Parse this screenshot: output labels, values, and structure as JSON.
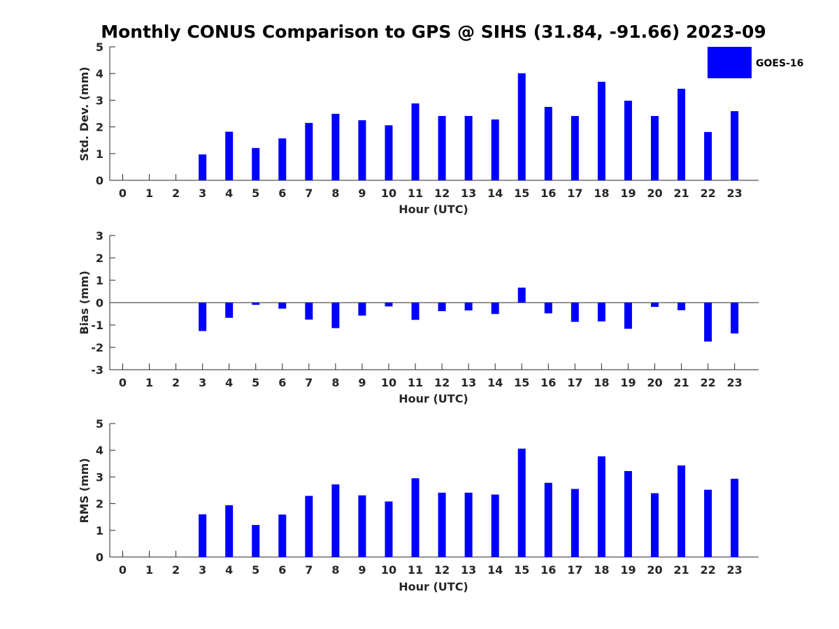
{
  "figure_title": "Monthly CONUS Comparison to GPS @ SIHS (31.84, -91.66) 2023-09",
  "legend": {
    "label": "GOES-16",
    "color": "#0000ff"
  },
  "chart_data": [
    {
      "type": "bar",
      "title": "Monthly CONUS Comparison to GPS @ SIHS (31.84, -91.66) 2023-09",
      "xlabel": "Hour (UTC)",
      "ylabel": "Std. Dev. (mm)",
      "categories": [
        "0",
        "1",
        "2",
        "3",
        "4",
        "5",
        "6",
        "7",
        "8",
        "9",
        "10",
        "11",
        "12",
        "13",
        "14",
        "15",
        "16",
        "17",
        "18",
        "19",
        "20",
        "21",
        "22",
        "23"
      ],
      "series": [
        {
          "name": "GOES-16",
          "color": "#0000ff",
          "values": [
            null,
            null,
            null,
            0.97,
            1.82,
            1.21,
            1.57,
            2.15,
            2.49,
            2.25,
            2.06,
            2.88,
            2.41,
            2.41,
            2.28,
            4.01,
            2.75,
            2.41,
            3.69,
            2.98,
            2.41,
            3.43,
            1.81,
            2.59
          ]
        }
      ],
      "ylim": [
        0,
        5
      ],
      "yticks": [
        0,
        1,
        2,
        3,
        4,
        5
      ],
      "legend_position": "top-right",
      "grid": false
    },
    {
      "type": "bar",
      "xlabel": "Hour (UTC)",
      "ylabel": "Bias (mm)",
      "categories": [
        "0",
        "1",
        "2",
        "3",
        "4",
        "5",
        "6",
        "7",
        "8",
        "9",
        "10",
        "11",
        "12",
        "13",
        "14",
        "15",
        "16",
        "17",
        "18",
        "19",
        "20",
        "21",
        "22",
        "23"
      ],
      "series": [
        {
          "name": "GOES-16",
          "color": "#0000ff",
          "values": [
            null,
            null,
            null,
            -1.27,
            -0.68,
            -0.1,
            -0.27,
            -0.76,
            -1.14,
            -0.58,
            -0.17,
            -0.77,
            -0.38,
            -0.35,
            -0.51,
            0.67,
            -0.48,
            -0.86,
            -0.84,
            -1.17,
            -0.19,
            -0.34,
            -1.74,
            -1.38
          ]
        }
      ],
      "ylim": [
        -3,
        3
      ],
      "yticks": [
        -3,
        -2,
        -1,
        0,
        1,
        2,
        3
      ],
      "grid": false
    },
    {
      "type": "bar",
      "xlabel": "Hour (UTC)",
      "ylabel": "RMS (mm)",
      "categories": [
        "0",
        "1",
        "2",
        "3",
        "4",
        "5",
        "6",
        "7",
        "8",
        "9",
        "10",
        "11",
        "12",
        "13",
        "14",
        "15",
        "16",
        "17",
        "18",
        "19",
        "20",
        "21",
        "22",
        "23"
      ],
      "series": [
        {
          "name": "GOES-16",
          "color": "#0000ff",
          "values": [
            null,
            null,
            null,
            1.6,
            1.94,
            1.2,
            1.59,
            2.29,
            2.72,
            2.31,
            2.08,
            2.95,
            2.41,
            2.41,
            2.34,
            4.06,
            2.78,
            2.55,
            3.77,
            3.22,
            2.39,
            3.43,
            2.52,
            2.93
          ]
        }
      ],
      "ylim": [
        0,
        5
      ],
      "yticks": [
        0,
        1,
        2,
        3,
        4,
        5
      ],
      "grid": false
    }
  ]
}
